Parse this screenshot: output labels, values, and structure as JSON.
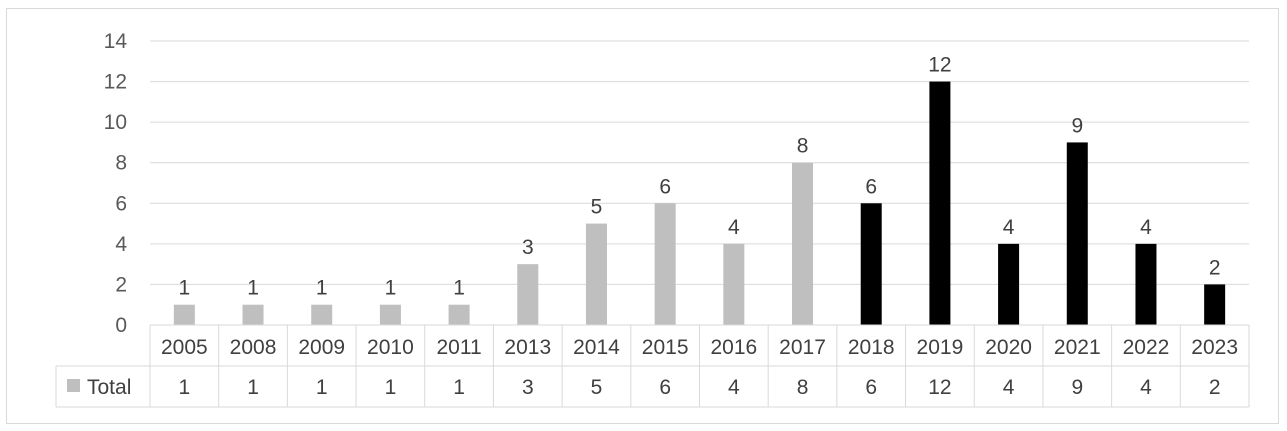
{
  "chart_data": {
    "type": "bar",
    "categories": [
      "2005",
      "2008",
      "2009",
      "2010",
      "2011",
      "2013",
      "2014",
      "2015",
      "2016",
      "2017",
      "2018",
      "2019",
      "2020",
      "2021",
      "2022",
      "2023"
    ],
    "series": [
      {
        "name": "Total",
        "values": [
          1,
          1,
          1,
          1,
          1,
          3,
          5,
          6,
          4,
          8,
          6,
          12,
          4,
          9,
          4,
          2
        ]
      }
    ],
    "ylim": [
      0,
      14
    ],
    "yticks": [
      "0",
      "2",
      "4",
      "6",
      "8",
      "10",
      "12",
      "14"
    ],
    "grid": true,
    "legend": "data-table",
    "colors": {
      "earlier": "#bfbfbf",
      "recent": "#000000",
      "recent_from": "2018"
    },
    "data_labels": true
  }
}
